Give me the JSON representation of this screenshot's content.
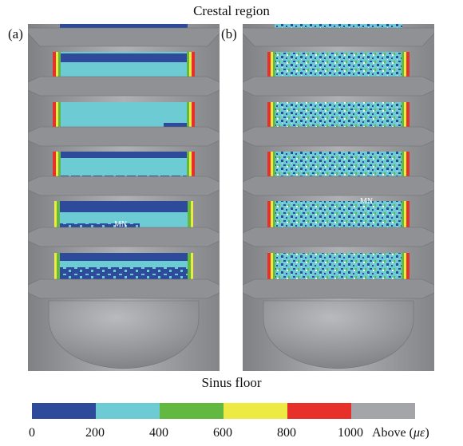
{
  "figure": {
    "top_title": "Crestal region",
    "bottom_title": "Sinus floor",
    "panel_a_label": "(a)",
    "panel_b_label": "(b)",
    "marker_label": "MN"
  },
  "legend": {
    "colors": [
      "#2e4a9a",
      "#6ccbd3",
      "#63b840",
      "#ecea43",
      "#e8302a",
      "#a3a5a8"
    ],
    "ticks": [
      "0",
      "200",
      "400",
      "600",
      "800",
      "1000"
    ],
    "unit_label_prefix": "Above (",
    "unit_label_symbol": "με",
    "unit_label_suffix": ")"
  }
}
